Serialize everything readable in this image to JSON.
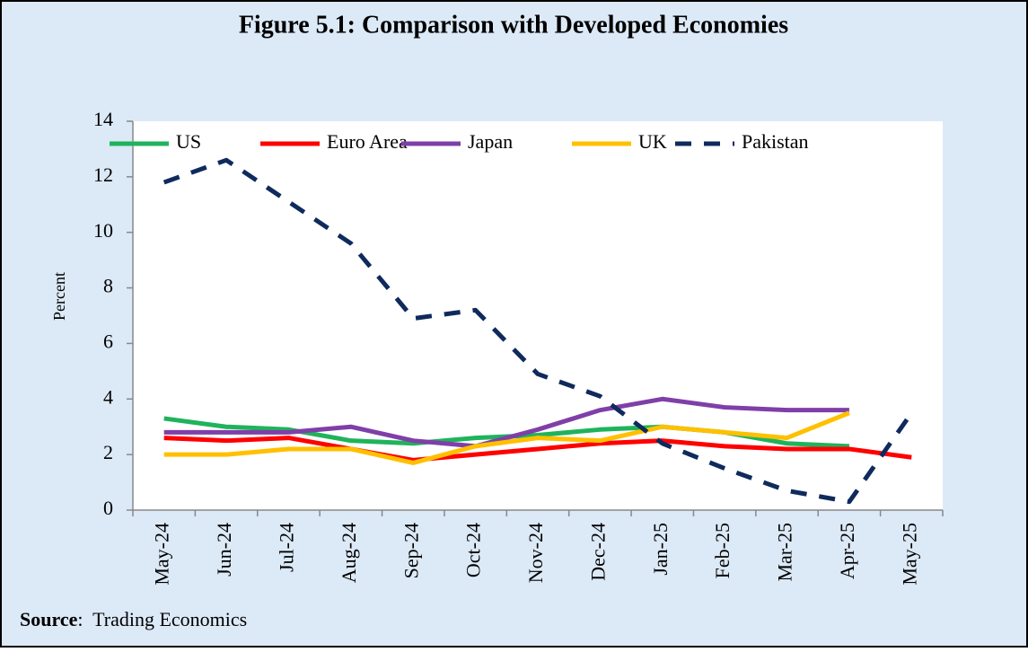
{
  "chart_data": {
    "type": "line",
    "title": "Figure 5.1: Comparison with Developed Economies",
    "y_label": "Percent",
    "categories": [
      "May-24",
      "Jun-24",
      "Jul-24",
      "Aug-24",
      "Sep-24",
      "Oct-24",
      "Nov-24",
      "Dec-24",
      "Jan-25",
      "Feb-25",
      "Mar-25",
      "Apr-25",
      "May-25"
    ],
    "series": [
      {
        "name": "US",
        "color": "#1fb35b",
        "values": [
          3.3,
          3.0,
          2.9,
          2.5,
          2.4,
          2.6,
          2.7,
          2.9,
          3.0,
          2.8,
          2.4,
          2.3,
          null
        ]
      },
      {
        "name": "Euro Area",
        "color": "#ff0000",
        "values": [
          2.6,
          2.5,
          2.6,
          2.2,
          1.8,
          2.0,
          2.2,
          2.4,
          2.5,
          2.3,
          2.2,
          2.2,
          1.9
        ]
      },
      {
        "name": "Japan",
        "color": "#7f3fa8",
        "values": [
          2.8,
          2.8,
          2.8,
          3.0,
          2.5,
          2.3,
          2.9,
          3.6,
          4.0,
          3.7,
          3.6,
          3.6,
          null
        ]
      },
      {
        "name": "UK",
        "color": "#ffc000",
        "values": [
          2.0,
          2.0,
          2.2,
          2.2,
          1.7,
          2.3,
          2.6,
          2.5,
          3.0,
          2.8,
          2.6,
          3.5,
          null
        ]
      },
      {
        "name": "Pakistan",
        "color": "#0f2a5c",
        "dashed": true,
        "values": [
          11.8,
          12.6,
          11.1,
          9.6,
          6.9,
          7.2,
          4.9,
          4.1,
          2.4,
          1.5,
          0.7,
          0.3,
          3.5
        ]
      }
    ],
    "ylim": [
      0,
      14
    ],
    "yticks": [
      0,
      2,
      4,
      6,
      8,
      10,
      12,
      14
    ],
    "source": {
      "label": "Source",
      "text": ":  Trading Economics"
    }
  }
}
